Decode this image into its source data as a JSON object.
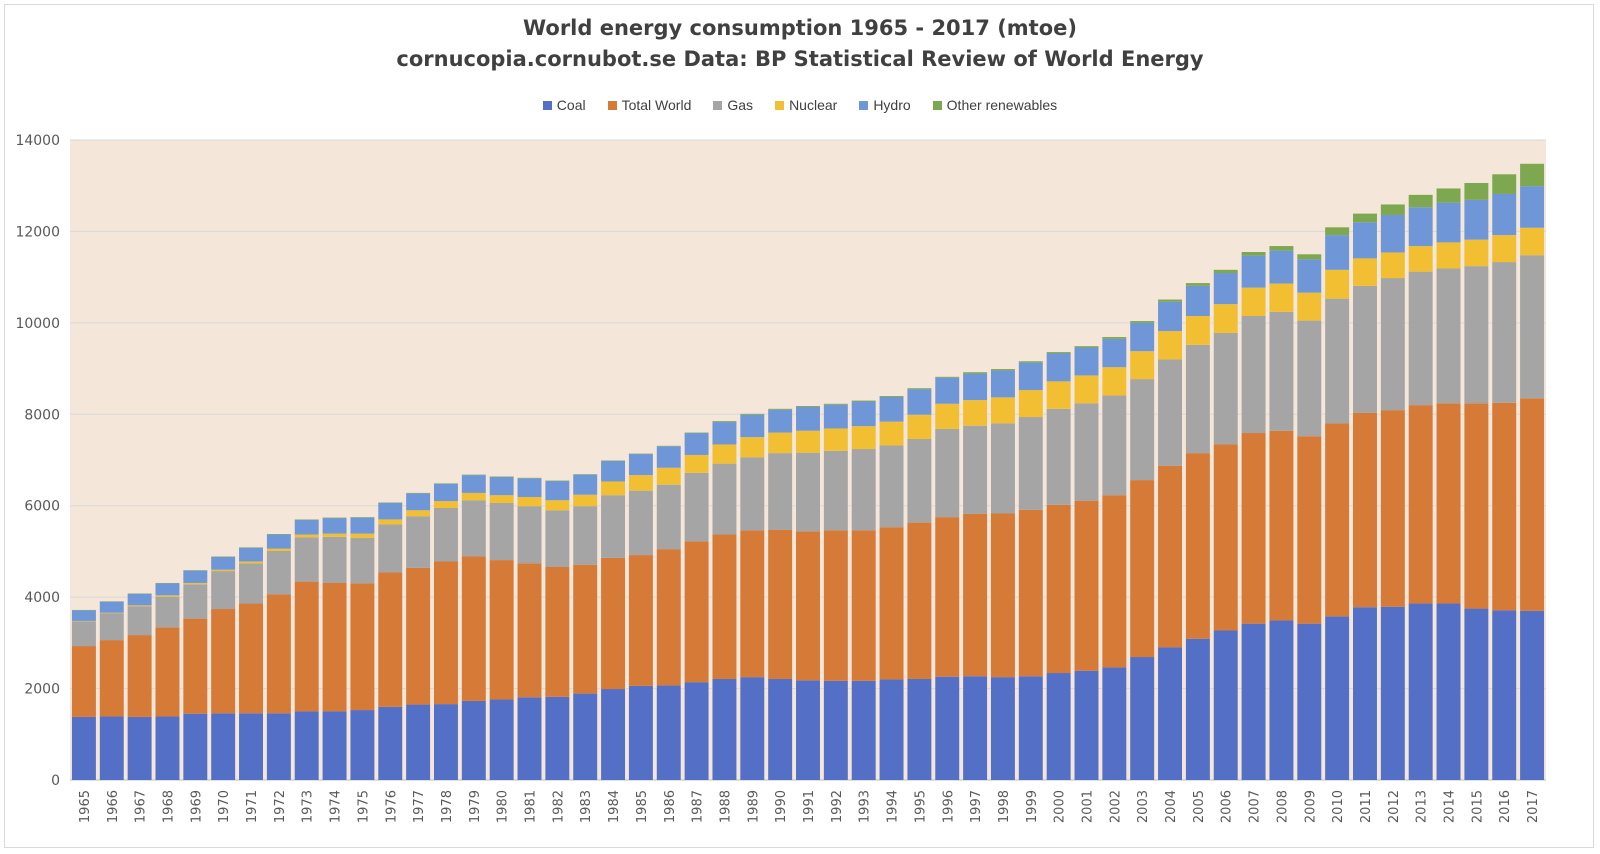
{
  "chart_data": {
    "type": "bar",
    "stacked": true,
    "title": "World energy consumption 1965 - 2017 (mtoe)",
    "subtitle": "cornucopia.cornubot.se Data: BP Statistical Review of World Energy",
    "ylim": [
      0,
      14000
    ],
    "yticks": [
      0,
      2000,
      4000,
      6000,
      8000,
      10000,
      12000,
      14000
    ],
    "grid": true,
    "legend_position": "top",
    "plot_background": "#f5e6da",
    "categories": [
      "1965",
      "1966",
      "1967",
      "1968",
      "1969",
      "1970",
      "1971",
      "1972",
      "1973",
      "1974",
      "1975",
      "1976",
      "1977",
      "1978",
      "1979",
      "1980",
      "1981",
      "1982",
      "1983",
      "1984",
      "1985",
      "1986",
      "1987",
      "1988",
      "1989",
      "1990",
      "1991",
      "1992",
      "1993",
      "1994",
      "1995",
      "1996",
      "1997",
      "1998",
      "1999",
      "2000",
      "2001",
      "2002",
      "2003",
      "2004",
      "2005",
      "2006",
      "2007",
      "2008",
      "2009",
      "2010",
      "2011",
      "2012",
      "2013",
      "2014",
      "2015",
      "2016",
      "2017"
    ],
    "series": [
      {
        "name": "Coal",
        "color": "#5470c6",
        "values": [
          1380,
          1390,
          1380,
          1390,
          1450,
          1460,
          1460,
          1460,
          1500,
          1500,
          1530,
          1600,
          1650,
          1660,
          1730,
          1760,
          1810,
          1820,
          1890,
          1990,
          2060,
          2070,
          2140,
          2210,
          2250,
          2210,
          2180,
          2170,
          2170,
          2200,
          2210,
          2260,
          2270,
          2250,
          2270,
          2340,
          2390,
          2460,
          2690,
          2900,
          3090,
          3270,
          3420,
          3490,
          3420,
          3580,
          3780,
          3790,
          3860,
          3860,
          3750,
          3710,
          3700
        ]
      },
      {
        "name": "Total World",
        "color": "#d57a37",
        "values": [
          1550,
          1670,
          1790,
          1950,
          2080,
          2280,
          2400,
          2600,
          2840,
          2810,
          2770,
          2940,
          2990,
          3120,
          3160,
          3050,
          2930,
          2840,
          2820,
          2870,
          2860,
          2980,
          3080,
          3160,
          3210,
          3260,
          3260,
          3290,
          3290,
          3330,
          3420,
          3490,
          3550,
          3580,
          3640,
          3680,
          3720,
          3770,
          3870,
          3970,
          4060,
          4070,
          4170,
          4150,
          4100,
          4220,
          4250,
          4300,
          4340,
          4380,
          4490,
          4540,
          4650
        ]
      },
      {
        "name": "Gas",
        "color": "#a5a5a5",
        "values": [
          540,
          590,
          630,
          670,
          750,
          830,
          880,
          950,
          970,
          1010,
          1000,
          1050,
          1130,
          1170,
          1230,
          1250,
          1250,
          1240,
          1280,
          1370,
          1410,
          1410,
          1500,
          1550,
          1600,
          1680,
          1720,
          1740,
          1780,
          1790,
          1830,
          1930,
          1930,
          1970,
          2030,
          2100,
          2130,
          2180,
          2210,
          2330,
          2370,
          2440,
          2560,
          2600,
          2530,
          2730,
          2780,
          2890,
          2920,
          2950,
          3000,
          3080,
          3130
        ]
      },
      {
        "name": "Nuclear",
        "color": "#f2bf33",
        "values": [
          10,
          10,
          20,
          30,
          30,
          30,
          40,
          50,
          60,
          70,
          90,
          110,
          130,
          150,
          160,
          170,
          200,
          220,
          250,
          300,
          340,
          370,
          390,
          420,
          440,
          450,
          480,
          490,
          500,
          520,
          530,
          550,
          560,
          570,
          590,
          600,
          610,
          620,
          610,
          620,
          630,
          630,
          620,
          620,
          610,
          630,
          600,
          560,
          560,
          570,
          580,
          590,
          600
        ]
      },
      {
        "name": "Hydro",
        "color": "#6f97d8",
        "values": [
          230,
          240,
          250,
          260,
          270,
          280,
          300,
          310,
          320,
          340,
          350,
          360,
          370,
          380,
          390,
          400,
          410,
          420,
          440,
          450,
          460,
          470,
          480,
          490,
          490,
          500,
          520,
          520,
          540,
          540,
          560,
          570,
          580,
          590,
          600,
          610,
          610,
          620,
          620,
          640,
          660,
          680,
          700,
          720,
          730,
          760,
          790,
          820,
          850,
          870,
          870,
          900,
          910
        ]
      },
      {
        "name": "Other renewables",
        "color": "#7ea84f",
        "values": [
          10,
          10,
          10,
          10,
          10,
          10,
          10,
          10,
          10,
          10,
          10,
          10,
          10,
          10,
          10,
          10,
          10,
          10,
          10,
          10,
          10,
          10,
          10,
          20,
          20,
          20,
          20,
          20,
          20,
          20,
          20,
          20,
          30,
          30,
          30,
          30,
          30,
          40,
          40,
          50,
          60,
          70,
          80,
          100,
          110,
          170,
          190,
          230,
          270,
          310,
          370,
          430,
          490
        ]
      }
    ]
  }
}
